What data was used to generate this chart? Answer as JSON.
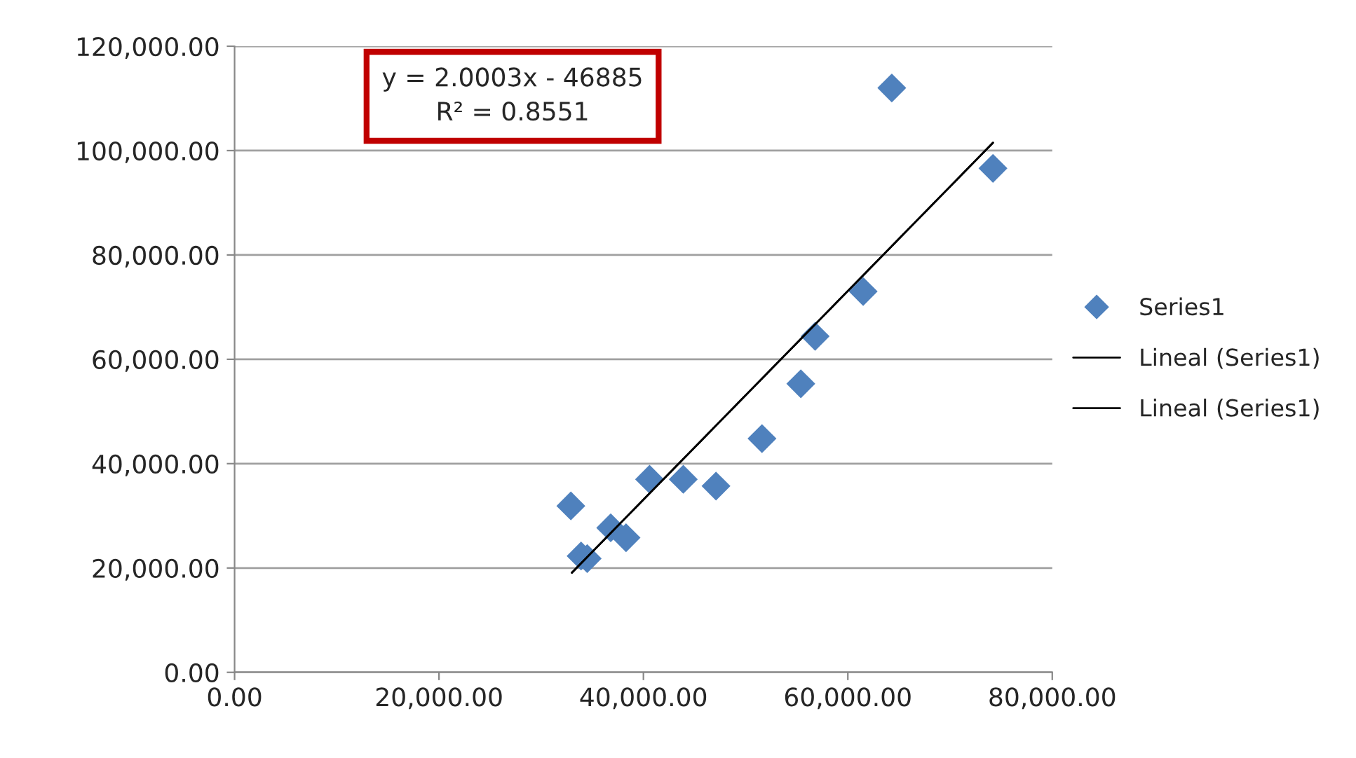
{
  "chart_data": {
    "type": "scatter",
    "xlim": [
      0,
      80000
    ],
    "xticks": [
      {
        "value": 0,
        "label": "0.00"
      },
      {
        "value": 20000,
        "label": "20,000.00"
      },
      {
        "value": 40000,
        "label": "40,000.00"
      },
      {
        "value": 60000,
        "label": "60,000.00"
      },
      {
        "value": 80000,
        "label": "80,000.00"
      }
    ],
    "ylim": [
      0,
      120000
    ],
    "yticks": [
      {
        "value": 0,
        "label": "0.00"
      },
      {
        "value": 20000,
        "label": "20,000.00"
      },
      {
        "value": 40000,
        "label": "40,000.00"
      },
      {
        "value": 60000,
        "label": "60,000.00"
      },
      {
        "value": 80000,
        "label": "80,000.00"
      },
      {
        "value": 100000,
        "label": "100,000.00"
      },
      {
        "value": 120000,
        "label": "120,000.00"
      }
    ],
    "grid": "y",
    "legend": "right",
    "annotations": [
      "y = 2.0003x - 46885\nR² = 0.8551"
    ],
    "series": [
      {
        "name": "Series1",
        "marker": "diamond",
        "color": "#4f81bd",
        "x": [
          32900,
          33900,
          34500,
          36800,
          38300,
          40600,
          43900,
          47100,
          51600,
          55400,
          56800,
          61500,
          64300,
          74200
        ],
        "values": [
          31900,
          22300,
          21800,
          27700,
          25800,
          37000,
          37000,
          35700,
          44800,
          55300,
          64400,
          73000,
          112000,
          96600
        ]
      },
      {
        "name": "Lineal (Series1)",
        "type": "line",
        "marker": "none",
        "color": "#000000",
        "x": [
          33000,
          74200
        ],
        "values": [
          19100,
          101500
        ]
      },
      {
        "name": "Lineal (Series1)",
        "type": "line",
        "marker": "none",
        "color": "#000000",
        "x": [
          33000,
          74200
        ],
        "values": [
          19100,
          101500
        ]
      }
    ]
  }
}
